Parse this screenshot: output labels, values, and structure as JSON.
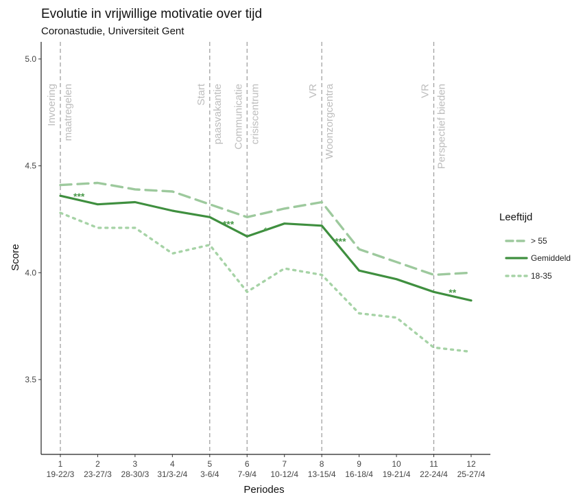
{
  "chart_data": {
    "type": "line",
    "title": "Evolutie in vrijwillige motivatie over tijd",
    "subtitle": "Coronastudie, Universiteit Gent",
    "xlabel": "Periodes",
    "ylabel": "Score",
    "ylim": [
      3.15,
      5.08
    ],
    "yticks": [
      "3.5",
      "4.0",
      "4.5",
      "5.0"
    ],
    "x_numbers": [
      "1",
      "2",
      "3",
      "4",
      "5",
      "6",
      "7",
      "8",
      "9",
      "10",
      "11",
      "12"
    ],
    "x_dates": [
      "19-22/3",
      "23-27/3",
      "28-30/3",
      "31/3-2/4",
      "3-6/4",
      "7-9/4",
      "10-12/4",
      "13-15/4",
      "16-18/4",
      "19-21/4",
      "22-24/4",
      "25-27/4"
    ],
    "series": [
      {
        "name": "> 55",
        "style": "dashed",
        "color": "#9dc99d",
        "values": [
          4.41,
          4.42,
          4.39,
          4.38,
          4.32,
          4.26,
          4.3,
          4.33,
          4.11,
          4.05,
          3.99,
          4.0
        ]
      },
      {
        "name": "Gemiddeld",
        "style": "solid",
        "color": "#3f8f3f",
        "values": [
          4.36,
          4.32,
          4.33,
          4.29,
          4.26,
          4.17,
          4.23,
          4.22,
          4.01,
          3.97,
          3.91,
          3.87
        ]
      },
      {
        "name": "18-35",
        "style": "dotted",
        "color": "#a6d3a6",
        "values": [
          4.28,
          4.21,
          4.21,
          4.09,
          4.13,
          3.91,
          4.02,
          3.99,
          3.81,
          3.79,
          3.65,
          3.63
        ]
      }
    ],
    "events": [
      {
        "x": 1,
        "lines": [
          "Invoering",
          "maatregelen"
        ]
      },
      {
        "x": 5,
        "lines": [
          "Start",
          "paasvakantie"
        ]
      },
      {
        "x": 6,
        "lines": [
          "Communicatie",
          "crisiscentrum"
        ]
      },
      {
        "x": 8,
        "lines": [
          "VR",
          "Woonzorgcentra"
        ]
      },
      {
        "x": 11,
        "lines": [
          "VR",
          "Perspectief bieden"
        ]
      }
    ],
    "significance": [
      {
        "x": 1.5,
        "y": 4.37,
        "label": "***"
      },
      {
        "x": 5.5,
        "y": 4.24,
        "label": "***"
      },
      {
        "x": 6.5,
        "y": 4.21,
        "label": "*"
      },
      {
        "x": 8.5,
        "y": 4.16,
        "label": "***"
      },
      {
        "x": 11.5,
        "y": 3.92,
        "label": "**"
      }
    ],
    "legend": {
      "title": "Leeftijd",
      "position": "right"
    },
    "grid": false
  }
}
